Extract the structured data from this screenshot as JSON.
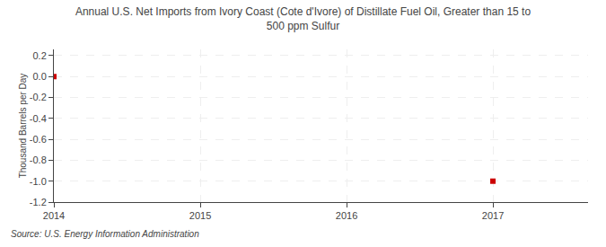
{
  "chart_data": {
    "type": "scatter",
    "title": "Annual U.S. Net Imports from Ivory Coast (Cote d'Ivore) of Distillate Fuel Oil, Greater than 15 to\n500 ppm Sulfur",
    "ylabel": "Thousand Barrels per Day",
    "source": "Source: U.S. Energy Information Administration",
    "x": [
      2014,
      2017
    ],
    "values": [
      0.0,
      -1.0
    ],
    "color": "#cc0000",
    "marker": "square",
    "xlim": [
      2014.0,
      2017.65
    ],
    "ylim": [
      -1.2,
      0.26
    ],
    "xticks": [
      2014,
      2015,
      2016,
      2017
    ],
    "yticks": [
      0.2,
      {
        "value": 0.0,
        "label": "0.0"
      },
      -0.2,
      -0.4,
      -0.6,
      -0.8,
      {
        "value": -1.0,
        "label": "-1.0"
      },
      -1.2
    ],
    "grid": true
  }
}
